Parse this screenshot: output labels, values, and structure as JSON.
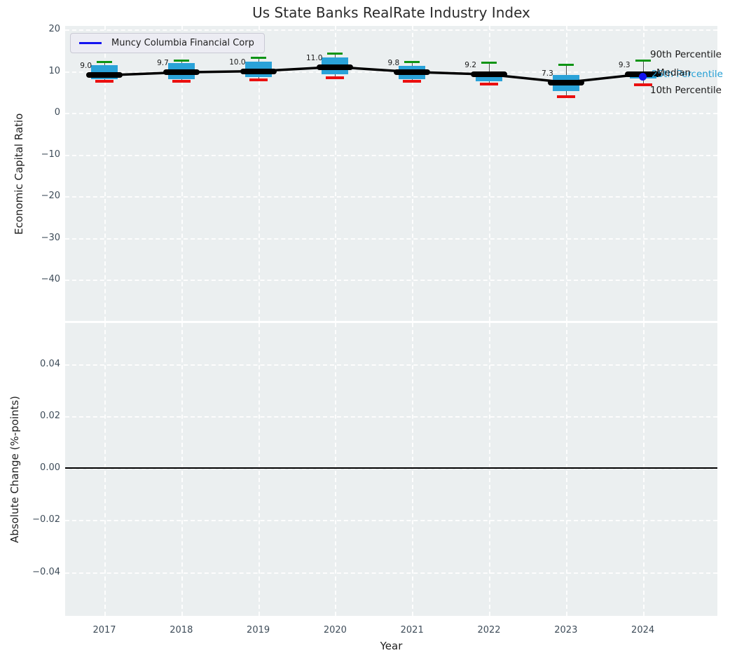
{
  "title": "Us State Banks RealRate Industry Index",
  "legend": {
    "label": "Muncy Columbia Financial Corp"
  },
  "colors": {
    "box_fill": "#2aa2d8",
    "cap_top_green": "#0d9414",
    "cap_bottom_red": "#ea0f0f",
    "median_black": "#000000",
    "company_blue": "#1414f0",
    "percentile_text_cyan": "#259fd4",
    "axes_background": "#ebeff0",
    "grid_white": "#ffffff",
    "tick_text": "#3e4c59"
  },
  "chart_data": [
    {
      "type": "boxplot",
      "title": "Us State Banks RealRate Industry Index",
      "xlabel": "Year",
      "ylabel": "Economic Capital Ratio",
      "ylim": [
        -50,
        20.8
      ],
      "grid": "white-dashed",
      "yticks": [
        {
          "v": 20,
          "label": "20"
        },
        {
          "v": 10,
          "label": "10"
        },
        {
          "v": 0,
          "label": "0"
        },
        {
          "v": -10,
          "label": "−10"
        },
        {
          "v": -20,
          "label": "−20"
        },
        {
          "v": -30,
          "label": "−30"
        },
        {
          "v": -40,
          "label": "−40"
        }
      ],
      "categories": [
        "2017",
        "2018",
        "2019",
        "2020",
        "2021",
        "2022",
        "2023",
        "2024"
      ],
      "boxes": [
        {
          "year": "2017",
          "p10": 7.6,
          "p25": 8.0,
          "median": 9.0,
          "p75": 11.4,
          "p90": 12.2,
          "label": "9.0"
        },
        {
          "year": "2018",
          "p10": 7.5,
          "p25": 8.0,
          "median": 9.7,
          "p75": 12.0,
          "p90": 12.6,
          "label": "9.7"
        },
        {
          "year": "2019",
          "p10": 7.9,
          "p25": 8.6,
          "median": 10.0,
          "p75": 12.3,
          "p90": 13.2,
          "label": "10.0"
        },
        {
          "year": "2020",
          "p10": 8.4,
          "p25": 9.3,
          "median": 11.0,
          "p75": 13.2,
          "p90": 14.2,
          "label": "11.0"
        },
        {
          "year": "2021",
          "p10": 7.5,
          "p25": 8.0,
          "median": 9.8,
          "p75": 11.3,
          "p90": 12.2,
          "label": "9.8"
        },
        {
          "year": "2022",
          "p10": 6.9,
          "p25": 7.5,
          "median": 9.2,
          "p75": 9.9,
          "p90": 12.1,
          "label": "9.2"
        },
        {
          "year": "2023",
          "p10": 3.8,
          "p25": 5.2,
          "median": 7.3,
          "p75": 9.0,
          "p90": 11.5,
          "label": "7.3"
        },
        {
          "year": "2024",
          "p10": 6.8,
          "p25": 8.2,
          "median": 9.3,
          "p75": 10.0,
          "p90": 12.5,
          "label": "9.3"
        }
      ],
      "company_series": {
        "name": "Muncy Columbia Financial Corp",
        "visible_points": [
          {
            "year": "2024",
            "value": 8.7
          }
        ]
      },
      "legend_position": "upper left",
      "annotations": [
        {
          "id": "p90",
          "label": "90th Percentile",
          "color": "dark"
        },
        {
          "id": "median",
          "label": "Median",
          "color": "dark"
        },
        {
          "id": "p25",
          "label": "25th Percentile",
          "color": "cyan"
        },
        {
          "id": "p10",
          "label": "10th Percentile",
          "color": "dark"
        }
      ]
    },
    {
      "type": "line",
      "xlabel": "Year",
      "ylabel": "Absolute Change (%-points)",
      "ylim": [
        -0.0557,
        0.0557
      ],
      "grid": "white-dashed",
      "yticks": [
        {
          "v": 0.04,
          "label": "0.04"
        },
        {
          "v": 0.02,
          "label": "0.02"
        },
        {
          "v": 0.0,
          "label": "0.00"
        },
        {
          "v": -0.02,
          "label": "−0.02"
        },
        {
          "v": -0.04,
          "label": "−0.04"
        }
      ],
      "categories": [
        "2017",
        "2018",
        "2019",
        "2020",
        "2021",
        "2022",
        "2023",
        "2024"
      ],
      "zero_line": 0.0,
      "series": []
    }
  ]
}
